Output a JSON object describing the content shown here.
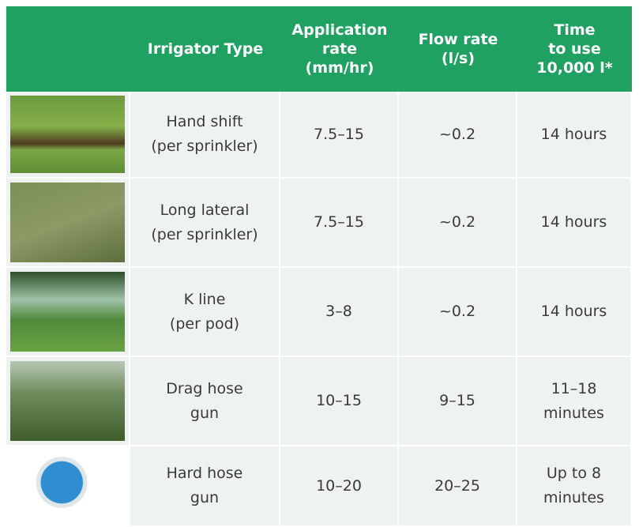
{
  "table": {
    "header": [
      [
        "Irrigator Type"
      ],
      [
        "Application",
        "rate",
        "(mm/hr)"
      ],
      [
        "Flow rate",
        "(l/s)"
      ],
      [
        "Time",
        "to use",
        "10,000 l*"
      ]
    ],
    "rows": [
      [
        [
          "Hand shift",
          "(per sprinkler)"
        ],
        [
          "7.5–15"
        ],
        [
          "~0.2"
        ],
        [
          "14 hours"
        ]
      ],
      [
        [
          "Long lateral",
          "(per sprinkler)"
        ],
        [
          "7.5–15"
        ],
        [
          "~0.2"
        ],
        [
          "14 hours"
        ]
      ],
      [
        [
          "K line",
          "(per pod)"
        ],
        [
          "3–8"
        ],
        [
          "~0.2"
        ],
        [
          "14 hours"
        ]
      ],
      [
        [
          "Drag hose",
          "gun"
        ],
        [
          "10–15"
        ],
        [
          "9–15"
        ],
        [
          "11–18",
          "minutes"
        ]
      ],
      [
        [
          "Hard hose",
          "gun"
        ],
        [
          "10–20"
        ],
        [
          "20–25"
        ],
        [
          "Up to 8",
          "minutes"
        ]
      ]
    ]
  }
}
